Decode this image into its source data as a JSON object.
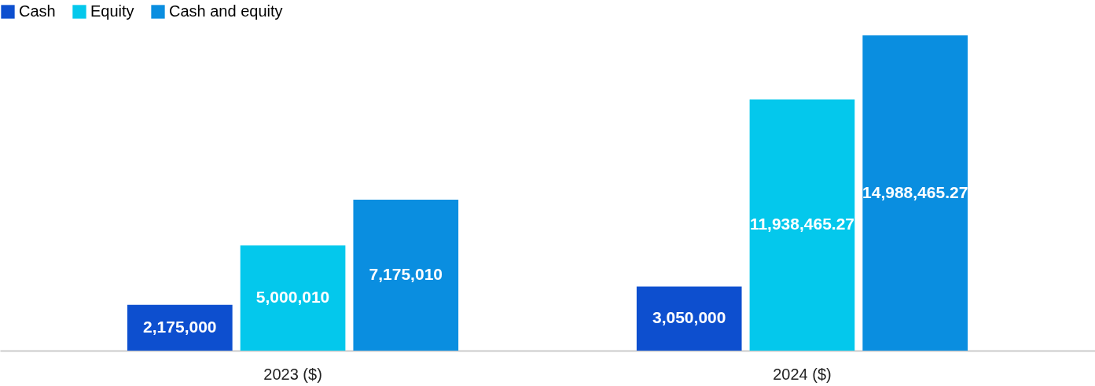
{
  "chart_data": {
    "type": "bar",
    "categories": [
      "2023 ($)",
      "2024 ($)"
    ],
    "series": [
      {
        "name": "Cash",
        "color": "#0d4fcf",
        "values": [
          2175000,
          3050000
        ],
        "value_labels": [
          "2,175,000",
          "3,050,000"
        ]
      },
      {
        "name": "Equity",
        "color": "#04c8ec",
        "values": [
          5000010,
          11938465.27
        ],
        "value_labels": [
          "5,000,010",
          "11,938,465.27"
        ]
      },
      {
        "name": "Cash and equity",
        "color": "#0a8ee0",
        "values": [
          7175010,
          14988465.27
        ],
        "value_labels": [
          "7,175,010",
          "14,988,465.27"
        ]
      }
    ],
    "legend": "top left",
    "grid": false
  }
}
